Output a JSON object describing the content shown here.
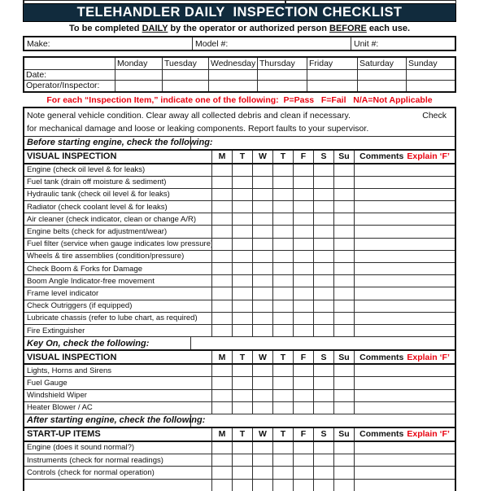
{
  "page_title": "TELEHANDLER DAILY  INSPECTION CHECKLIST",
  "subtitle": {
    "pre": "To be completed ",
    "u1": "DAILY",
    "mid": " by the operator or authorized person ",
    "u2": "BEFORE",
    "post": " each use."
  },
  "info_fields": {
    "make": "Make:",
    "model": "Model #:",
    "unit": "Unit #:"
  },
  "week_table": {
    "days": [
      "Monday",
      "Tuesday",
      "Wednesday",
      "Thursday",
      "Friday",
      "Saturday",
      "Sunday"
    ],
    "row1_label": "Date:",
    "row2_label": "Operator/Inspector:"
  },
  "instruction": "For each “Inspection Item,” indicate one of the following:  P=Pass   F=Fail   N/A=Not Applicable",
  "note": {
    "line1": "Note general vehicle condition. Clear away all collected debris and clean if necessary.",
    "line1_right": "Check",
    "line2": "for mechanical damage and loose or leaking components. Report faults to your supervisor."
  },
  "checklist": {
    "day_columns": [
      "M",
      "T",
      "W",
      "T",
      "F",
      "S",
      "Su"
    ],
    "comments_label": "Comments",
    "comments_red": "Explain ‘F’",
    "sections": [
      {
        "section_label": "Before starting engine, check the following:",
        "header_title": "VISUAL INSPECTION",
        "items": [
          "Engine (check oil level & for leaks)",
          "Fuel tank (drain off moisture & sediment)",
          "Hydraulic tank (check oil level & for leaks)",
          "Radiator (check coolant level & for leaks)",
          "Air cleaner (check indicator, clean or change A/R)",
          "Engine belts (check for adjustment/wear)",
          "Fuel filter (service when gauge indicates low pressure)",
          "Wheels & tire assemblies (condition/pressure)",
          "Check Boom & Forks for Damage",
          "Boom Angle Indicator-free movement",
          "Frame level indicator",
          "Check Outriggers (if equipped)",
          "Lubricate chassis (refer to lube chart, as required)",
          "Fire Extinguisher"
        ]
      },
      {
        "section_label": "Key On, check the following:",
        "header_title": "VISUAL INSPECTION",
        "items": [
          "Lights, Horns and Sirens",
          "Fuel Gauge",
          "Windshield Wiper",
          "Heater Blower / AC"
        ]
      },
      {
        "section_label": "After starting engine, check the following:",
        "header_title": "START-UP ITEMS",
        "items": [
          "Engine (does it sound normal?)",
          "Instruments (check for normal readings)",
          "Controls (check for normal operation)"
        ]
      }
    ]
  },
  "colors": {
    "navy": "#112b3d",
    "red": "#e8000f"
  }
}
